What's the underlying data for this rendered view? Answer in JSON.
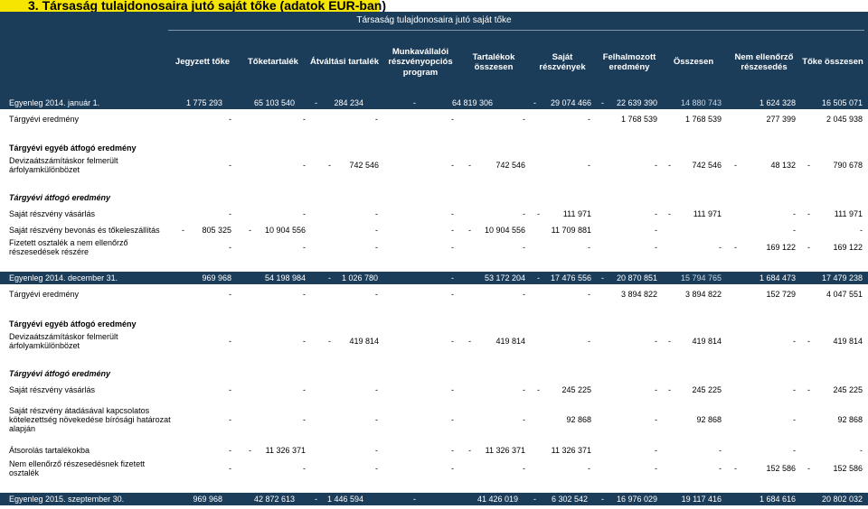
{
  "heading": "3. Társaság tulajdonosaira jutó saját tőke (adatok EUR-ban)",
  "table": {
    "title": "Társaság tulajdonosaira jutó saját tőke",
    "columns": [
      "Jegyzett tőke",
      "Tőketartalék",
      "Átváltási tartalék",
      "Munkavállalói részvényopciós program",
      "Tartalékok összesen",
      "Saját részvények",
      "Felhalmozott eredmény",
      "Összesen",
      "Nem ellenőrző részesedés",
      "Tőke összesen"
    ],
    "rows": [
      {
        "type": "band",
        "label": "Egyenleg 2014. január 1.",
        "values": [
          "1 775 293",
          "65 103 540",
          "-",
          "284 234",
          "-",
          "64 819 306",
          "-",
          "29 074 466",
          "-",
          "22 639 390",
          "14 880 743",
          "1 624 328",
          "16 505 071"
        ]
      },
      {
        "type": "data",
        "label": "Tárgyévi eredmény",
        "values": [
          "-",
          "-",
          "-",
          "-",
          "-",
          "-",
          "1 768 539",
          "1 768 539",
          "277 399",
          "2 045 938"
        ]
      },
      {
        "type": "section",
        "label": "Tárgyévi egyéb átfogó eredmény"
      },
      {
        "type": "data",
        "label": "Devizaátszámításkor felmerült árfolyamkülönbözet",
        "values": [
          "-",
          "-",
          "-",
          "742 546",
          "-",
          "-",
          "742 546",
          "-",
          "-",
          "-",
          "742 546",
          "-",
          "48 132",
          "-",
          "790 678"
        ]
      },
      {
        "type": "italic",
        "label": "Tárgyévi átfogó eredmény"
      },
      {
        "type": "data",
        "label": "Saját részvény vásárlás",
        "values": [
          "-",
          "-",
          "-",
          "-",
          "-",
          "-",
          "111 971",
          "-",
          "-",
          "111 971",
          "-",
          "-",
          "111 971"
        ]
      },
      {
        "type": "data",
        "label": "Saját részvény bevonás és tőkeleszállítás",
        "values": [
          "-",
          "805 325",
          "-",
          "10 904 556",
          "-",
          "-",
          "-",
          "10 904 556",
          "11 709 881",
          "-",
          "-",
          "-"
        ]
      },
      {
        "type": "data",
        "label": "Fizetett osztalék a nem ellenőrző részesedések részére",
        "values": [
          "-",
          "-",
          "-",
          "-",
          "-",
          "-",
          "-",
          "-",
          "-",
          "169 122",
          "-",
          "169 122"
        ]
      },
      {
        "type": "band",
        "label": "Egyenleg 2014. december 31.",
        "values": [
          "969 968",
          "54 198 984",
          "-",
          "1 026 780",
          "-",
          "53 172 204",
          "-",
          "17 476 556",
          "-",
          "20 870 851",
          "15 794 765",
          "1 684 473",
          "17 479 238"
        ]
      },
      {
        "type": "data",
        "label": "Tárgyévi eredmény",
        "values": [
          "-",
          "-",
          "-",
          "-",
          "-",
          "-",
          "3 894 822",
          "3 894 822",
          "152 729",
          "4 047 551"
        ]
      },
      {
        "type": "section",
        "label": "Tárgyévi egyéb átfogó eredmény"
      },
      {
        "type": "data",
        "label": "Devizaátszámításkor felmerült árfolyamkülönbözet",
        "values": [
          "-",
          "-",
          "-",
          "419 814",
          "-",
          "-",
          "419 814",
          "-",
          "-",
          "-",
          "419 814",
          "-",
          "-",
          "419 814"
        ]
      },
      {
        "type": "italic",
        "label": "Tárgyévi átfogó eredmény"
      },
      {
        "type": "data",
        "label": "Saját részvény vásárlás",
        "values": [
          "-",
          "-",
          "-",
          "-",
          "-",
          "-",
          "245 225",
          "-",
          "-",
          "245 225",
          "-",
          "-",
          "245 225"
        ]
      },
      {
        "type": "data",
        "label": "Saját részvény átadásával kapcsolatos kötelezettség növekedése bírósági határozat alapján",
        "values": [
          "-",
          "-",
          "-",
          "-",
          "-",
          "92 868",
          "-",
          "92 868",
          "-",
          "92 868"
        ]
      },
      {
        "type": "data",
        "label": "Átsorolás tartalékokba",
        "values": [
          "-",
          "-",
          "11 326 371",
          "-",
          "-",
          "-",
          "11 326 371",
          "11 326 371",
          "-",
          "-",
          "-",
          "-"
        ]
      },
      {
        "type": "data",
        "label": "Nem ellenőrző részesedésnek fizetett osztalék",
        "values": [
          "-",
          "-",
          "-",
          "-",
          "-",
          "-",
          "-",
          "-",
          "-",
          "152 586",
          "-",
          "152 586"
        ]
      },
      {
        "type": "band",
        "label": "Egyenleg 2015. szeptember 30.",
        "values": [
          "969 968",
          "42 872 613",
          "-",
          "1 446 594",
          "-",
          "41 426 019",
          "-",
          "6 302 542",
          "-",
          "16 976 029",
          "19 117 416",
          "1 684 616",
          "20 802 032"
        ]
      }
    ]
  }
}
